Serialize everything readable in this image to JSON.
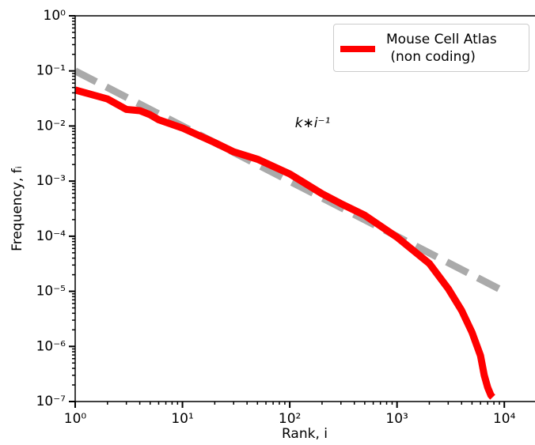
{
  "chart_data": {
    "type": "line",
    "xlabel": "Rank, i",
    "ylabel": "Frequency, fᵢ",
    "annotation": "k∗i⁻¹",
    "log_x": true,
    "log_y": true,
    "legend": "upper right",
    "xlim": [
      1,
      19000
    ],
    "ylim": [
      1e-07,
      1
    ],
    "xticks": [
      {
        "value": 1,
        "label": "10⁰"
      },
      {
        "value": 10,
        "label": "10¹"
      },
      {
        "value": 100,
        "label": "10²"
      },
      {
        "value": 1000,
        "label": "10³"
      },
      {
        "value": 10000,
        "label": "10⁴"
      }
    ],
    "yticks": [
      {
        "value": 1e-07,
        "label": "10⁻⁷"
      },
      {
        "value": 1e-06,
        "label": "10⁻⁶"
      },
      {
        "value": 1e-05,
        "label": "10⁻⁵"
      },
      {
        "value": 0.0001,
        "label": "10⁻⁴"
      },
      {
        "value": 0.001,
        "label": "10⁻³"
      },
      {
        "value": 0.01,
        "label": "10⁻²"
      },
      {
        "value": 0.1,
        "label": "10⁻¹"
      },
      {
        "value": 1,
        "label": "10⁰"
      }
    ],
    "xticks_minor": [
      2,
      3,
      4,
      5,
      6,
      7,
      8,
      9,
      20,
      30,
      40,
      50,
      60,
      70,
      80,
      90,
      200,
      300,
      400,
      500,
      600,
      700,
      800,
      900,
      2000,
      3000,
      4000,
      5000,
      6000,
      7000,
      8000,
      9000
    ],
    "yticks_minor": [
      2e-07,
      3e-07,
      4e-07,
      5e-07,
      6e-07,
      7e-07,
      8e-07,
      9e-07,
      2e-06,
      3e-06,
      4e-06,
      5e-06,
      6e-06,
      7e-06,
      8e-06,
      9e-06,
      2e-05,
      3e-05,
      4e-05,
      5e-05,
      6e-05,
      7e-05,
      8e-05,
      9e-05,
      0.0002,
      0.0003,
      0.0004,
      0.0005,
      0.0006,
      0.0007,
      0.0008,
      0.0009,
      0.002,
      0.003,
      0.004,
      0.005,
      0.006,
      0.007,
      0.008,
      0.009,
      0.02,
      0.03,
      0.04,
      0.05,
      0.06,
      0.07,
      0.08,
      0.09,
      0.2,
      0.3,
      0.4,
      0.5,
      0.6,
      0.7,
      0.8,
      0.9
    ],
    "reference_line": {
      "color": "#aaaaaa",
      "x": [
        1,
        9000
      ],
      "values": [
        0.1,
        1.1e-05
      ]
    },
    "series": [
      {
        "name": "Mouse Cell Atlas\n (non coding)",
        "color": "#ff0000",
        "x": [
          1,
          2,
          3,
          4,
          5,
          6,
          10,
          20,
          30,
          50,
          100,
          200,
          300,
          500,
          1000,
          2000,
          3000,
          4000,
          5000,
          6000,
          6500,
          7000,
          7500,
          7800
        ],
        "values": [
          0.045,
          0.031,
          0.02,
          0.019,
          0.016,
          0.013,
          0.0092,
          0.005,
          0.0034,
          0.0025,
          0.00135,
          0.00059,
          0.00039,
          0.00024,
          9.6e-05,
          3.2e-05,
          1.12e-05,
          4.5e-06,
          1.8e-06,
          6.8e-07,
          3e-07,
          1.8e-07,
          1.3e-07,
          1.2e-07
        ]
      }
    ]
  }
}
